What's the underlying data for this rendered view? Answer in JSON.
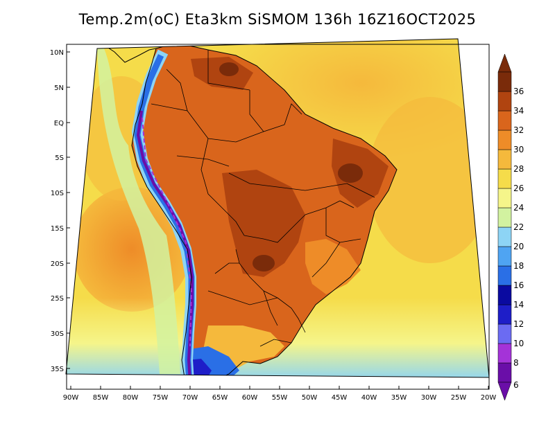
{
  "title": "Temp.2m(oC) Eta3km SiSMOM 136h 16Z16OCT2025",
  "lat_labels": [
    "10N",
    "5N",
    "EQ",
    "5S",
    "10S",
    "15S",
    "20S",
    "25S",
    "30S",
    "35S"
  ],
  "lon_labels": [
    "90W",
    "85W",
    "80W",
    "75W",
    "70W",
    "65W",
    "60W",
    "55W",
    "50W",
    "45W",
    "40W",
    "35W",
    "30W",
    "25W",
    "20W"
  ],
  "colorbar": {
    "unit": "oC",
    "labels": [
      "6",
      "8",
      "10",
      "12",
      "14",
      "16",
      "18",
      "20",
      "22",
      "24",
      "26",
      "28",
      "30",
      "32",
      "34",
      "36"
    ],
    "colors": [
      "#6a0ea8",
      "#a433d8",
      "#6b6bf2",
      "#1e1ec8",
      "#0a0aa0",
      "#2a6fe6",
      "#4fa4f2",
      "#8dd4f5",
      "#d2f2a0",
      "#f5f58a",
      "#f5dc4a",
      "#f5b93c",
      "#ee8c28",
      "#d9651c",
      "#b04410",
      "#7a2b0a"
    ],
    "range": [
      5,
      37
    ]
  }
}
